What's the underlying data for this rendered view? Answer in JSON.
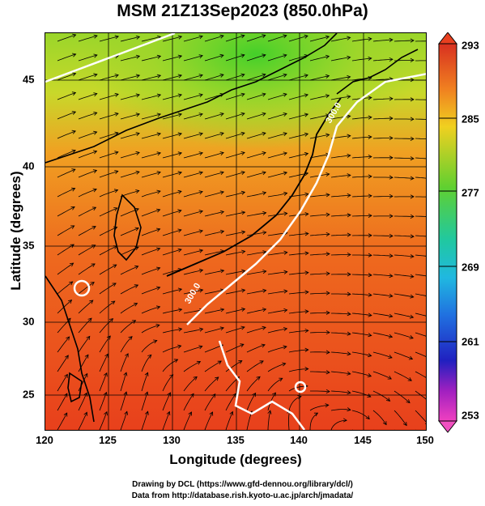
{
  "title": "MSM 21Z13Sep2023 (850.0hPa)",
  "xaxis": {
    "label": "Longitude (degrees)",
    "ticks": [
      "120",
      "125",
      "130",
      "135",
      "140",
      "145",
      "150"
    ],
    "range": [
      120,
      150
    ]
  },
  "yaxis": {
    "label": "Latitude  (degrees)",
    "ticks": [
      "25",
      "30",
      "35",
      "40",
      "45"
    ],
    "range": [
      22.6,
      47.8
    ]
  },
  "colorbar": {
    "ticks": [
      "293",
      "285",
      "277",
      "269",
      "261",
      "253"
    ],
    "range": [
      253,
      293
    ]
  },
  "contour_labels": [
    "300.0",
    "300.0"
  ],
  "credits": {
    "line1": "Drawing by DCL (https://www.gfd-dennou.org/library/dcl/)",
    "line2": "Data from http://database.rish.kyoto-u.ac.jp/arch/jmadata/"
  },
  "colors": {
    "warm": "#e8401c",
    "mid": "#f07a22",
    "cool": "#7cd02a",
    "contour": "#ffffff"
  }
}
